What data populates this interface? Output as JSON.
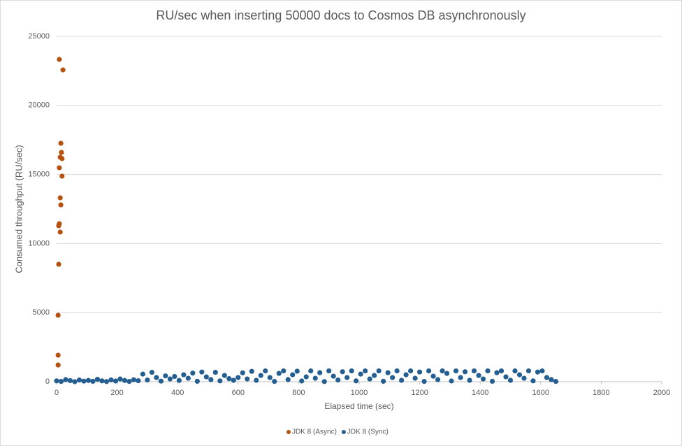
{
  "chart_data": {
    "type": "scatter",
    "title": "RU/sec when inserting 50000 docs to Cosmos DB asynchronously",
    "x_label": "Elapsed time (sec)",
    "y_label": "Consumed throughput (RU/sec)",
    "xlim": [
      0,
      2000
    ],
    "xticks": [
      0,
      200,
      400,
      600,
      800,
      1000,
      1200,
      1400,
      1600,
      1800,
      2000
    ],
    "ylim": [
      0,
      25000
    ],
    "yticks": [
      0,
      5000,
      10000,
      15000,
      20000,
      25000
    ],
    "grid": true,
    "legend": "bottom",
    "series": [
      {
        "name": "JDK 8 (Async)",
        "color": "#b5520f",
        "x": [
          9,
          21,
          14,
          16,
          12,
          18,
          9,
          18,
          12,
          14,
          9,
          7,
          12,
          7,
          5,
          5,
          5
        ],
        "values": [
          23330,
          22570,
          17260,
          16600,
          16250,
          16150,
          15490,
          14880,
          13310,
          12800,
          11440,
          11290,
          10830,
          8500,
          4810,
          1920,
          1210
        ]
      },
      {
        "name": "JDK 8 (Sync)",
        "color": "#255e91",
        "x": [
          0,
          15,
          30,
          45,
          60,
          75,
          90,
          105,
          120,
          135,
          150,
          165,
          180,
          195,
          210,
          225,
          240,
          255,
          270,
          285,
          300,
          315,
          330,
          345,
          360,
          375,
          390,
          405,
          420,
          435,
          450,
          465,
          480,
          495,
          510,
          525,
          540,
          555,
          570,
          585,
          600,
          615,
          630,
          645,
          660,
          675,
          690,
          705,
          720,
          735,
          750,
          765,
          780,
          795,
          810,
          825,
          840,
          855,
          870,
          885,
          900,
          915,
          930,
          945,
          960,
          975,
          990,
          1005,
          1020,
          1035,
          1050,
          1065,
          1080,
          1095,
          1110,
          1125,
          1140,
          1155,
          1170,
          1185,
          1200,
          1215,
          1230,
          1245,
          1260,
          1275,
          1290,
          1305,
          1320,
          1335,
          1350,
          1365,
          1380,
          1395,
          1410,
          1425,
          1440,
          1455,
          1470,
          1485,
          1500,
          1515,
          1530,
          1545,
          1560,
          1575,
          1590,
          1605,
          1620,
          1635,
          1650
        ],
        "values": [
          60,
          20,
          150,
          80,
          0,
          120,
          40,
          90,
          30,
          170,
          60,
          10,
          130,
          50,
          200,
          90,
          20,
          140,
          70,
          550,
          120,
          680,
          300,
          40,
          420,
          200,
          380,
          90,
          500,
          250,
          620,
          30,
          700,
          350,
          150,
          680,
          60,
          450,
          220,
          100,
          300,
          640,
          200,
          750,
          100,
          450,
          780,
          300,
          20,
          600,
          780,
          150,
          500,
          760,
          50,
          350,
          780,
          250,
          650,
          10,
          780,
          400,
          120,
          720,
          300,
          780,
          60,
          550,
          780,
          200,
          450,
          780,
          30,
          650,
          300,
          780,
          100,
          500,
          780,
          250,
          700,
          20,
          780,
          400,
          150,
          780,
          600,
          50,
          780,
          300,
          720,
          100,
          780,
          450,
          200,
          780,
          30,
          650,
          780,
          350,
          100,
          780,
          500,
          250,
          780,
          60,
          700,
          780,
          300,
          150,
          20
        ]
      }
    ]
  }
}
